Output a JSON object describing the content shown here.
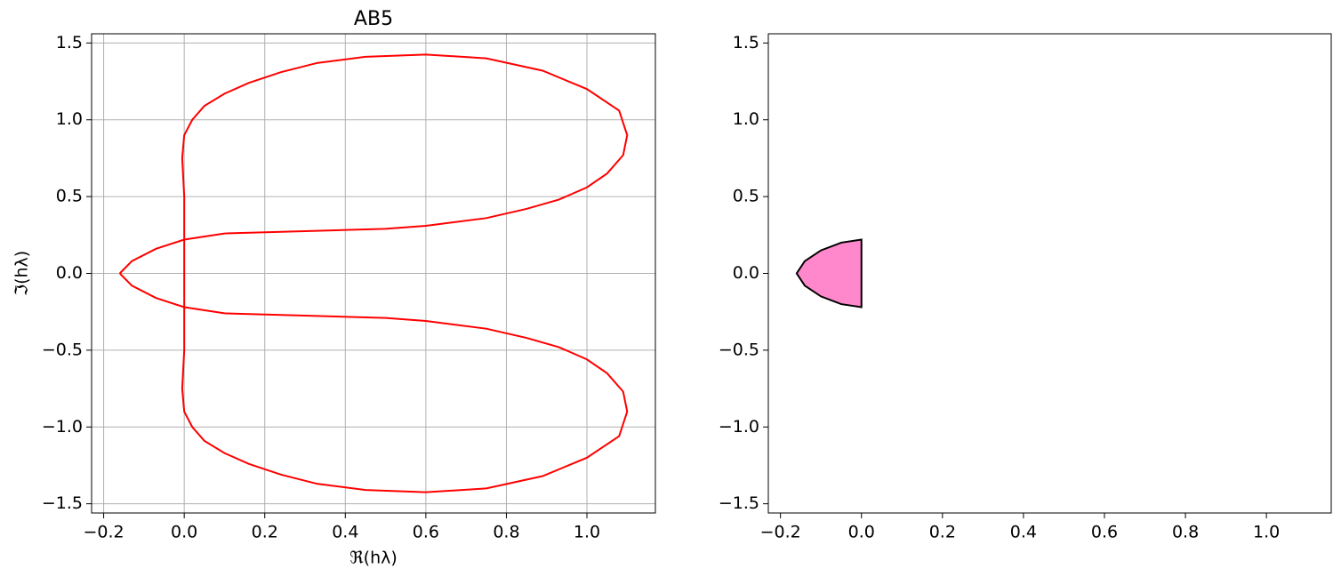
{
  "chart_data": [
    {
      "type": "line",
      "title": "AB5",
      "xlabel": "ℜ(hλ)",
      "ylabel": "ℑ(hλ)",
      "color": "#ff0000",
      "grid": true,
      "xlim": [
        -0.23,
        1.17
      ],
      "ylim": [
        -1.56,
        1.56
      ],
      "xticks": [
        {
          "value": -0.2,
          "label": "−0.2"
        },
        {
          "value": 0,
          "label": "0.0"
        },
        0.2,
        0.4,
        0.6,
        0.8,
        {
          "value": 1,
          "label": "1.0"
        }
      ],
      "yticks": [
        {
          "value": -1.5,
          "label": "−1.5"
        },
        {
          "value": -1,
          "label": "−1.0"
        },
        {
          "value": -0.5,
          "label": "−0.5"
        },
        {
          "value": 0,
          "label": "0.0"
        },
        0.5,
        {
          "value": 1,
          "label": "1.0"
        },
        1.5
      ],
      "x": [
        -0.16,
        -0.13,
        -0.07,
        0,
        0.1,
        0.3,
        0.5,
        0.6,
        0.75,
        0.85,
        0.93,
        1.0,
        1.05,
        1.09,
        1.1,
        1.08,
        1.0,
        0.89,
        0.75,
        0.6,
        0.45,
        0.33,
        0.24,
        0.16,
        0.1,
        0.05,
        0.02,
        0,
        -0.005,
        0,
        0,
        0,
        -0.005,
        0,
        0.02,
        0.05,
        0.1,
        0.16,
        0.24,
        0.33,
        0.45,
        0.6,
        0.75,
        0.89,
        1.0,
        1.08,
        1.1,
        1.09,
        1.05,
        1.0,
        0.93,
        0.85,
        0.75,
        0.6,
        0.5,
        0.3,
        0.1,
        0,
        -0.07,
        -0.13,
        -0.16
      ],
      "y": [
        0,
        0.08,
        0.16,
        0.22,
        0.26,
        0.275,
        0.29,
        0.31,
        0.36,
        0.42,
        0.48,
        0.56,
        0.65,
        0.77,
        0.9,
        1.06,
        1.2,
        1.32,
        1.4,
        1.425,
        1.41,
        1.37,
        1.31,
        1.24,
        1.17,
        1.09,
        1.0,
        0.9,
        0.75,
        0.5,
        0,
        -0.5,
        -0.75,
        -0.9,
        -1.0,
        -1.09,
        -1.17,
        -1.24,
        -1.31,
        -1.37,
        -1.41,
        -1.425,
        -1.4,
        -1.32,
        -1.2,
        -1.06,
        -0.9,
        -0.77,
        -0.65,
        -0.56,
        -0.48,
        -0.42,
        -0.36,
        -0.31,
        -0.29,
        -0.275,
        -0.26,
        -0.22,
        -0.16,
        -0.08,
        0
      ]
    },
    {
      "type": "area",
      "color": "#ff88cc",
      "edgecolor": "#000000",
      "grid": false,
      "xlim": [
        -0.23,
        1.16
      ],
      "ylim": [
        -1.56,
        1.56
      ],
      "xticks": [
        {
          "value": -0.2,
          "label": "−0.2"
        },
        {
          "value": 0,
          "label": "0.0"
        },
        0.2,
        0.4,
        0.6,
        0.8,
        {
          "value": 1,
          "label": "1.0"
        }
      ],
      "yticks": [
        {
          "value": -1.5,
          "label": "−1.5"
        },
        {
          "value": -1,
          "label": "−1.0"
        },
        {
          "value": -0.5,
          "label": "−0.5"
        },
        {
          "value": 0,
          "label": "0.0"
        },
        0.5,
        {
          "value": 1,
          "label": "1.0"
        },
        1.5
      ],
      "x": [
        0,
        -0.05,
        -0.1,
        -0.14,
        -0.16,
        -0.14,
        -0.1,
        -0.05,
        0,
        0
      ],
      "y": [
        0.22,
        0.2,
        0.15,
        0.08,
        0,
        -0.08,
        -0.15,
        -0.2,
        -0.22,
        0.22
      ]
    }
  ]
}
